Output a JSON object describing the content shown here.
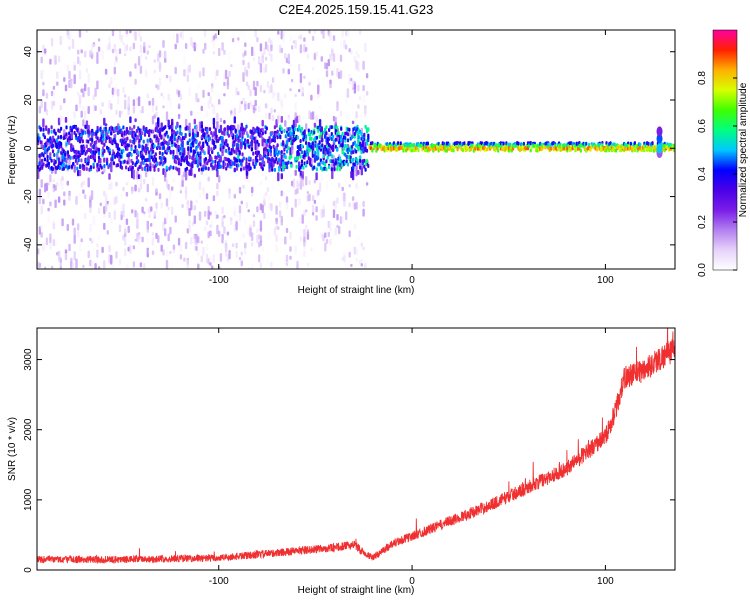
{
  "title": "C2E4.2025.159.15.41.G23",
  "chart_data": [
    {
      "type": "heatmap",
      "xlabel": "Height of straight line (km)",
      "ylabel": "Frequency (Hz)",
      "xlim": [
        -194,
        136
      ],
      "ylim": [
        -50,
        49
      ],
      "xticks": [
        -100,
        0,
        100
      ],
      "yticks": [
        -40,
        -20,
        0,
        20,
        40
      ],
      "colorbar": {
        "label": "Normalized spectral amplitude",
        "range": [
          0,
          1
        ],
        "ticks": [
          "0.0",
          "0.2",
          "0.4",
          "0.6",
          "0.8"
        ],
        "colormap": [
          "#ffffff",
          "#e6d2fa",
          "#b37ff0",
          "#7a1de8",
          "#4a00e8",
          "#0000ff",
          "#00c8ff",
          "#00ff80",
          "#40ff00",
          "#d8ff00",
          "#ffb000",
          "#ff2000",
          "#ff00a0"
        ]
      },
      "description_points": {
        "scatter_region_x": [
          -194,
          -23
        ],
        "ridge_frequency_hz": 0,
        "ridge_peak_amplitude": 0.9,
        "broadband_spread_hz": [
          -50,
          49
        ],
        "feature_near_x": 128
      }
    },
    {
      "type": "line",
      "xlabel": "Height of straight line (km)",
      "ylabel": "SNR (10 * v/v)",
      "xlim": [
        -194,
        136
      ],
      "ylim": [
        0,
        3450
      ],
      "xticks": [
        -100,
        0,
        100
      ],
      "yticks": [
        0,
        1000,
        2000,
        3000
      ],
      "series": [
        {
          "color": "#f03030",
          "trend": {
            "x": [
              -194,
              -150,
              -100,
              -80,
              -60,
              -40,
              -30,
              -25,
              -20,
              -10,
              0,
              20,
              40,
              60,
              80,
              100,
              105,
              110,
              120,
              130,
              136
            ],
            "y": [
              150,
              150,
              170,
              220,
              270,
              320,
              360,
              250,
              180,
              380,
              480,
              700,
              920,
              1180,
              1450,
              1900,
              2250,
              2750,
              2850,
              3050,
              3150
            ]
          },
          "noise_amplitude": 90
        }
      ]
    }
  ]
}
